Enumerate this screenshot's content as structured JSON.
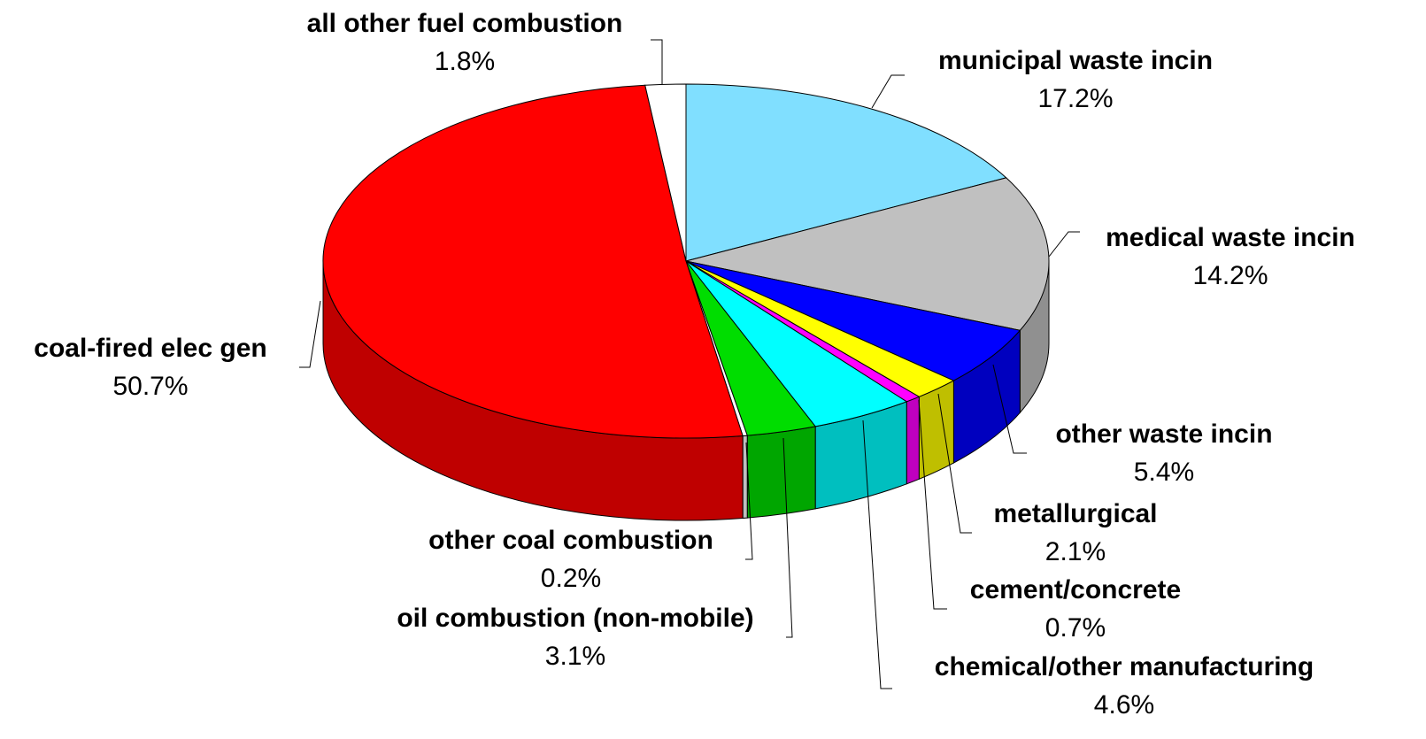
{
  "chart_data": {
    "type": "pie3d",
    "categories": [
      "municipal waste incin",
      "medical waste incin",
      "other waste incin",
      "metallurgical",
      "cement/concrete",
      "chemical/other manufacturing",
      "oil combustion (non-mobile)",
      "other coal combustion",
      "coal-fired elec gen",
      "all other fuel combustion"
    ],
    "values": [
      17.2,
      14.2,
      5.4,
      2.1,
      0.7,
      4.6,
      3.1,
      0.2,
      50.7,
      1.8
    ],
    "value_labels": [
      "17.2%",
      "14.2%",
      "5.4%",
      "2.1%",
      "0.7%",
      "4.6%",
      "3.1%",
      "0.2%",
      "50.7%",
      "1.8%"
    ],
    "colors": [
      "#80dfff",
      "#c0c0c0",
      "#0000ff",
      "#ffff00",
      "#ff00ff",
      "#00ffff",
      "#00dd00",
      "#ffffff",
      "#ff0000",
      "#ffffff"
    ]
  }
}
